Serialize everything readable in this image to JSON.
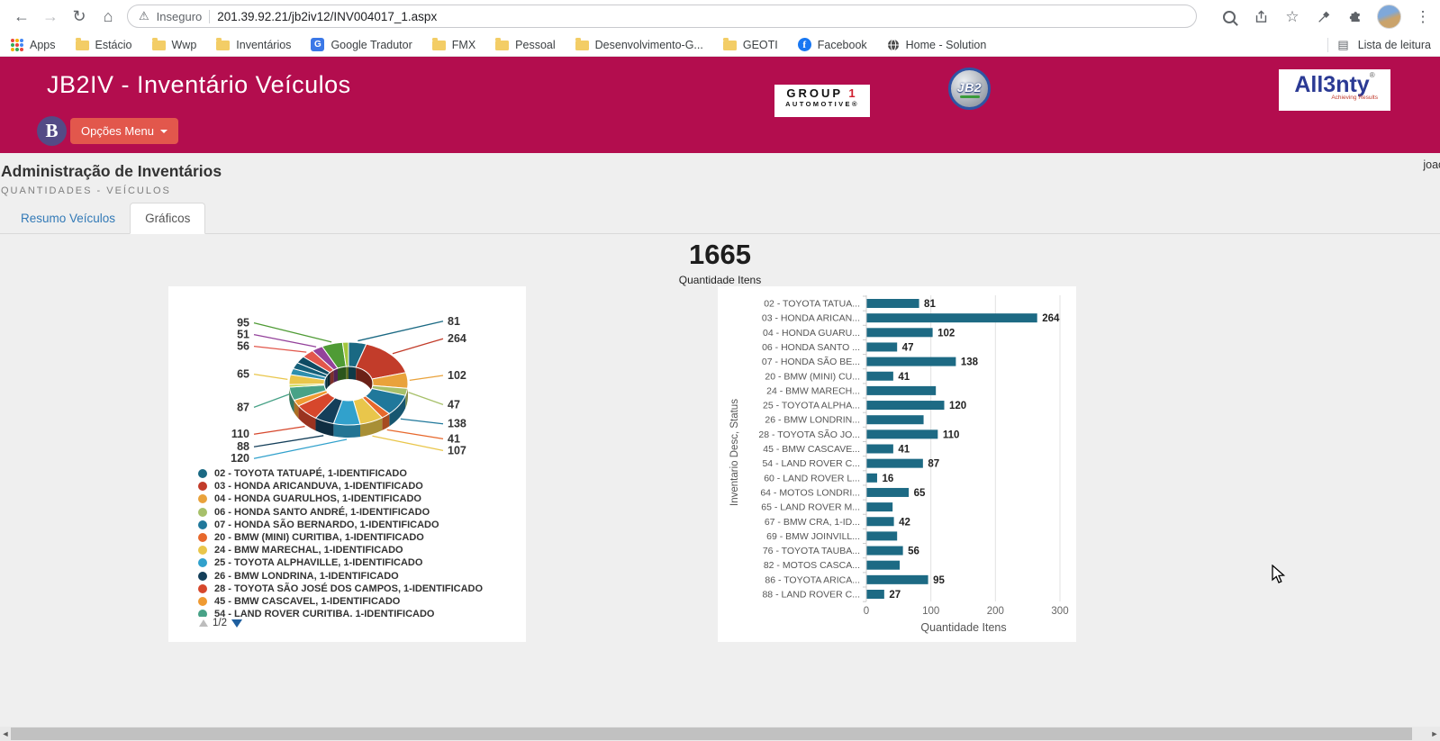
{
  "browser": {
    "security_label": "Inseguro",
    "url": "201.39.92.21/jb2iv12/INV004017_1.aspx",
    "bookmarks": [
      {
        "label": "Apps",
        "icon": "apps"
      },
      {
        "label": "Estácio",
        "icon": "folder"
      },
      {
        "label": "Wwp",
        "icon": "folder"
      },
      {
        "label": "Inventários",
        "icon": "folder"
      },
      {
        "label": "Google Tradutor",
        "icon": "translate"
      },
      {
        "label": "FMX",
        "icon": "folder"
      },
      {
        "label": "Pessoal",
        "icon": "folder"
      },
      {
        "label": "Desenvolvimento-G...",
        "icon": "folder"
      },
      {
        "label": "GEOTI",
        "icon": "folder"
      },
      {
        "label": "Facebook",
        "icon": "facebook"
      },
      {
        "label": "Home - Solution",
        "icon": "globe"
      }
    ],
    "reading_list_label": "Lista de leitura"
  },
  "icons": {
    "back": "←",
    "forward": "→",
    "refresh": "↻",
    "home": "⌂",
    "warning": "⚠",
    "star": "☆",
    "menu_kebab": "⋮",
    "reading_list": "▤",
    "scroll_left": "◄",
    "scroll_right": "►",
    "translate_letter": "G",
    "facebook_letter": "f"
  },
  "header": {
    "title": "JB2IV - Inventário Veículos",
    "badge_letter": "B",
    "menu_button_label": "Opções Menu",
    "logos": {
      "group1_word": "GROUP",
      "group1_num": "1",
      "group1_line2": "AUTOMOTIVE®",
      "jb2": "JB2",
      "allenty": "All3nty",
      "allenty_reg": "®",
      "allenty_tagline": "Achieving Results"
    },
    "colors": {
      "header_bg": "#b30d4e",
      "menu_button_bg": "#e2574c",
      "badge_bg": "#544a86"
    }
  },
  "page": {
    "title": "Administração de Inventários",
    "subtitle": "QUANTIDADES - VEÍCULOS",
    "username": "joao",
    "tabs": [
      {
        "label": "Resumo Veículos",
        "active": false
      },
      {
        "label": "Gráficos",
        "active": true
      }
    ],
    "kpi_value": "1665",
    "kpi_caption": "Quantidade Itens",
    "legend_pager": "1/2"
  },
  "chart_data": [
    {
      "type": "pie",
      "variant": "3d-donut",
      "title": "",
      "legend_position": "bottom-left",
      "legend_page": "1/2",
      "total": 1665,
      "slices": [
        {
          "short_label": "02 - TOYOTA TATUA...",
          "legend_label": "02 - TOYOTA TATUAPÉ, 1-IDENTIFICADO",
          "value": 81,
          "color": "#1a6983",
          "value_label_shown": true
        },
        {
          "short_label": "03 - HONDA ARICAN...",
          "legend_label": "03 - HONDA ARICANDUVA, 1-IDENTIFICADO",
          "value": 264,
          "color": "#c23c2a",
          "value_label_shown": true
        },
        {
          "short_label": "04 - HONDA GUARU...",
          "legend_label": "04 - HONDA GUARULHOS, 1-IDENTIFICADO",
          "value": 102,
          "color": "#e9a23b",
          "value_label_shown": true
        },
        {
          "short_label": "06 - HONDA SANTO ...",
          "legend_label": "06 - HONDA SANTO ANDRÉ, 1-IDENTIFICADO",
          "value": 47,
          "color": "#a7c06a",
          "value_label_shown": true
        },
        {
          "short_label": "07 - HONDA SÃO BE...",
          "legend_label": "07 - HONDA SÃO BERNARDO, 1-IDENTIFICADO",
          "value": 138,
          "color": "#20789b",
          "value_label_shown": true
        },
        {
          "short_label": "20 - BMW (MINI) CU...",
          "legend_label": "20 - BMW (MINI) CURITIBA, 1-IDENTIFICADO",
          "value": 41,
          "color": "#e7682c",
          "value_label_shown": true
        },
        {
          "short_label": "24 - BMW MARECH...",
          "legend_label": "24 - BMW MARECHAL, 1-IDENTIFICADO",
          "value": 107,
          "color": "#e9c64b",
          "value_label_shown": true
        },
        {
          "short_label": "25 - TOYOTA ALPHA...",
          "legend_label": "25 - TOYOTA ALPHAVILLE, 1-IDENTIFICADO",
          "value": 120,
          "color": "#31a1cc",
          "value_label_shown": true
        },
        {
          "short_label": "26 - BMW LONDRIN...",
          "legend_label": "26 - BMW LONDRINA, 1-IDENTIFICADO",
          "value": 88,
          "color": "#143f5a",
          "value_label_shown": true
        },
        {
          "short_label": "28 - TOYOTA SÃO JO...",
          "legend_label": "28 - TOYOTA SÃO JOSÉ DOS CAMPOS, 1-IDENTIFICADO",
          "value": 110,
          "color": "#d6472c",
          "value_label_shown": true
        },
        {
          "short_label": "45 - BMW CASCAVE...",
          "legend_label": "45 - BMW CASCAVEL, 1-IDENTIFICADO",
          "value": 41,
          "color": "#ef9a32",
          "value_label_shown": false
        },
        {
          "short_label": "54 - LAND ROVER C...",
          "legend_label": "54 - LAND ROVER CURITIBA, 1-IDENTIFICADO",
          "value": 87,
          "color": "#48a287",
          "value_label_shown": true
        },
        {
          "short_label": "60 - LAND ROVER L...",
          "legend_label": null,
          "value": 16,
          "color": "#c5d43c",
          "value_label_shown": false
        },
        {
          "short_label": "64 - MOTOS LONDRI...",
          "legend_label": null,
          "value": 65,
          "color": "#e9c64b",
          "value_label_shown": true
        },
        {
          "short_label": "65 - LAND ROVER M...",
          "legend_label": null,
          "value": 40,
          "color": "#2e8fae",
          "value_label_shown": false
        },
        {
          "short_label": "67 - BMW CRA, 1-ID...",
          "legend_label": null,
          "value": 42,
          "color": "#15607a",
          "value_label_shown": false
        },
        {
          "short_label": "69 - BMW JOINVILL...",
          "legend_label": null,
          "value": 47,
          "color": "#0e4b63",
          "value_label_shown": false
        },
        {
          "short_label": "76 - TOYOTA TAUBA...",
          "legend_label": null,
          "value": 56,
          "color": "#e2574c",
          "value_label_shown": true
        },
        {
          "short_label": "82 - MOTOS CASCA...",
          "legend_label": null,
          "value": 51,
          "color": "#94429b",
          "value_label_shown": true
        },
        {
          "short_label": "86 - TOYOTA ARICA...",
          "legend_label": null,
          "value": 95,
          "color": "#4f9b35",
          "value_label_shown": true
        },
        {
          "short_label": "88 - LAND ROVER C...",
          "legend_label": null,
          "value": 27,
          "color": "#a2c63c",
          "value_label_shown": false
        }
      ]
    },
    {
      "type": "bar",
      "orientation": "horizontal",
      "xlabel": "Quantidade Itens",
      "ylabel": "Inventario Desc, Status",
      "xlim": [
        0,
        300
      ],
      "xticks": [
        0,
        100,
        200,
        300
      ],
      "grid": true,
      "bar_color": "#1d6a84",
      "categories": [
        "02 - TOYOTA TATUA...",
        "03 - HONDA ARICAN...",
        "04 - HONDA GUARU...",
        "06 - HONDA SANTO ...",
        "07 - HONDA SÃO BE...",
        "20 - BMW (MINI) CU...",
        "24 - BMW MARECH...",
        "25 - TOYOTA ALPHA...",
        "26 - BMW LONDRIN...",
        "28 - TOYOTA SÃO JO...",
        "45 - BMW CASCAVE...",
        "54 - LAND ROVER C...",
        "60 - LAND ROVER L...",
        "64 - MOTOS LONDRI...",
        "65 - LAND ROVER M...",
        "67 - BMW CRA, 1-ID...",
        "69 - BMW JOINVILL...",
        "76 - TOYOTA TAUBA...",
        "82 - MOTOS CASCA...",
        "86 - TOYOTA ARICA...",
        "88 - LAND ROVER C..."
      ],
      "values": [
        81,
        264,
        102,
        47,
        138,
        41,
        107,
        120,
        88,
        110,
        41,
        87,
        16,
        65,
        40,
        42,
        47,
        56,
        51,
        95,
        27
      ],
      "value_labels_shown": [
        true,
        true,
        true,
        true,
        true,
        true,
        false,
        true,
        false,
        true,
        true,
        true,
        true,
        true,
        false,
        true,
        false,
        true,
        false,
        true,
        true
      ]
    }
  ]
}
